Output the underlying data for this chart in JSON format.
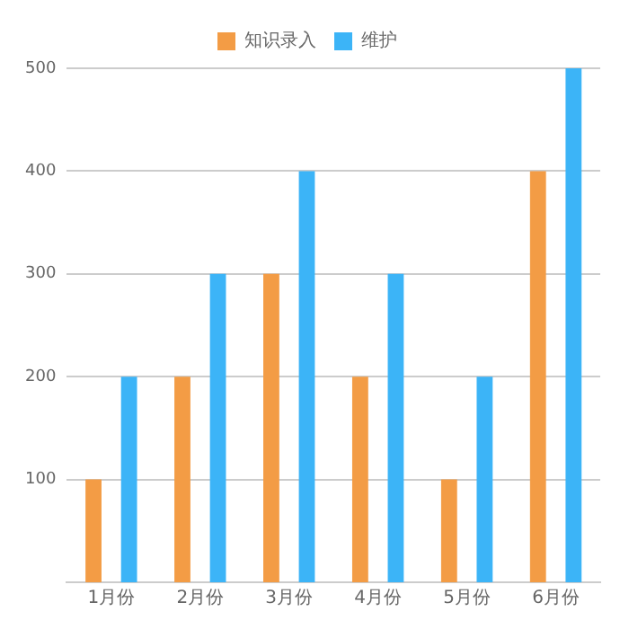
{
  "chart_data": {
    "type": "bar",
    "categories": [
      "1月份",
      "2月份",
      "3月份",
      "4月份",
      "5月份",
      "6月份"
    ],
    "series": [
      {
        "name": "知识录入",
        "color": "#f39c45",
        "values": [
          100,
          200,
          300,
          200,
          100,
          400
        ]
      },
      {
        "name": "维护",
        "color": "#3cb4f7",
        "values": [
          200,
          300,
          400,
          300,
          200,
          500
        ]
      }
    ],
    "ylim": [
      0,
      500
    ],
    "yticks": [
      100,
      200,
      300,
      400,
      500
    ],
    "grid": "y",
    "legend": "top"
  }
}
